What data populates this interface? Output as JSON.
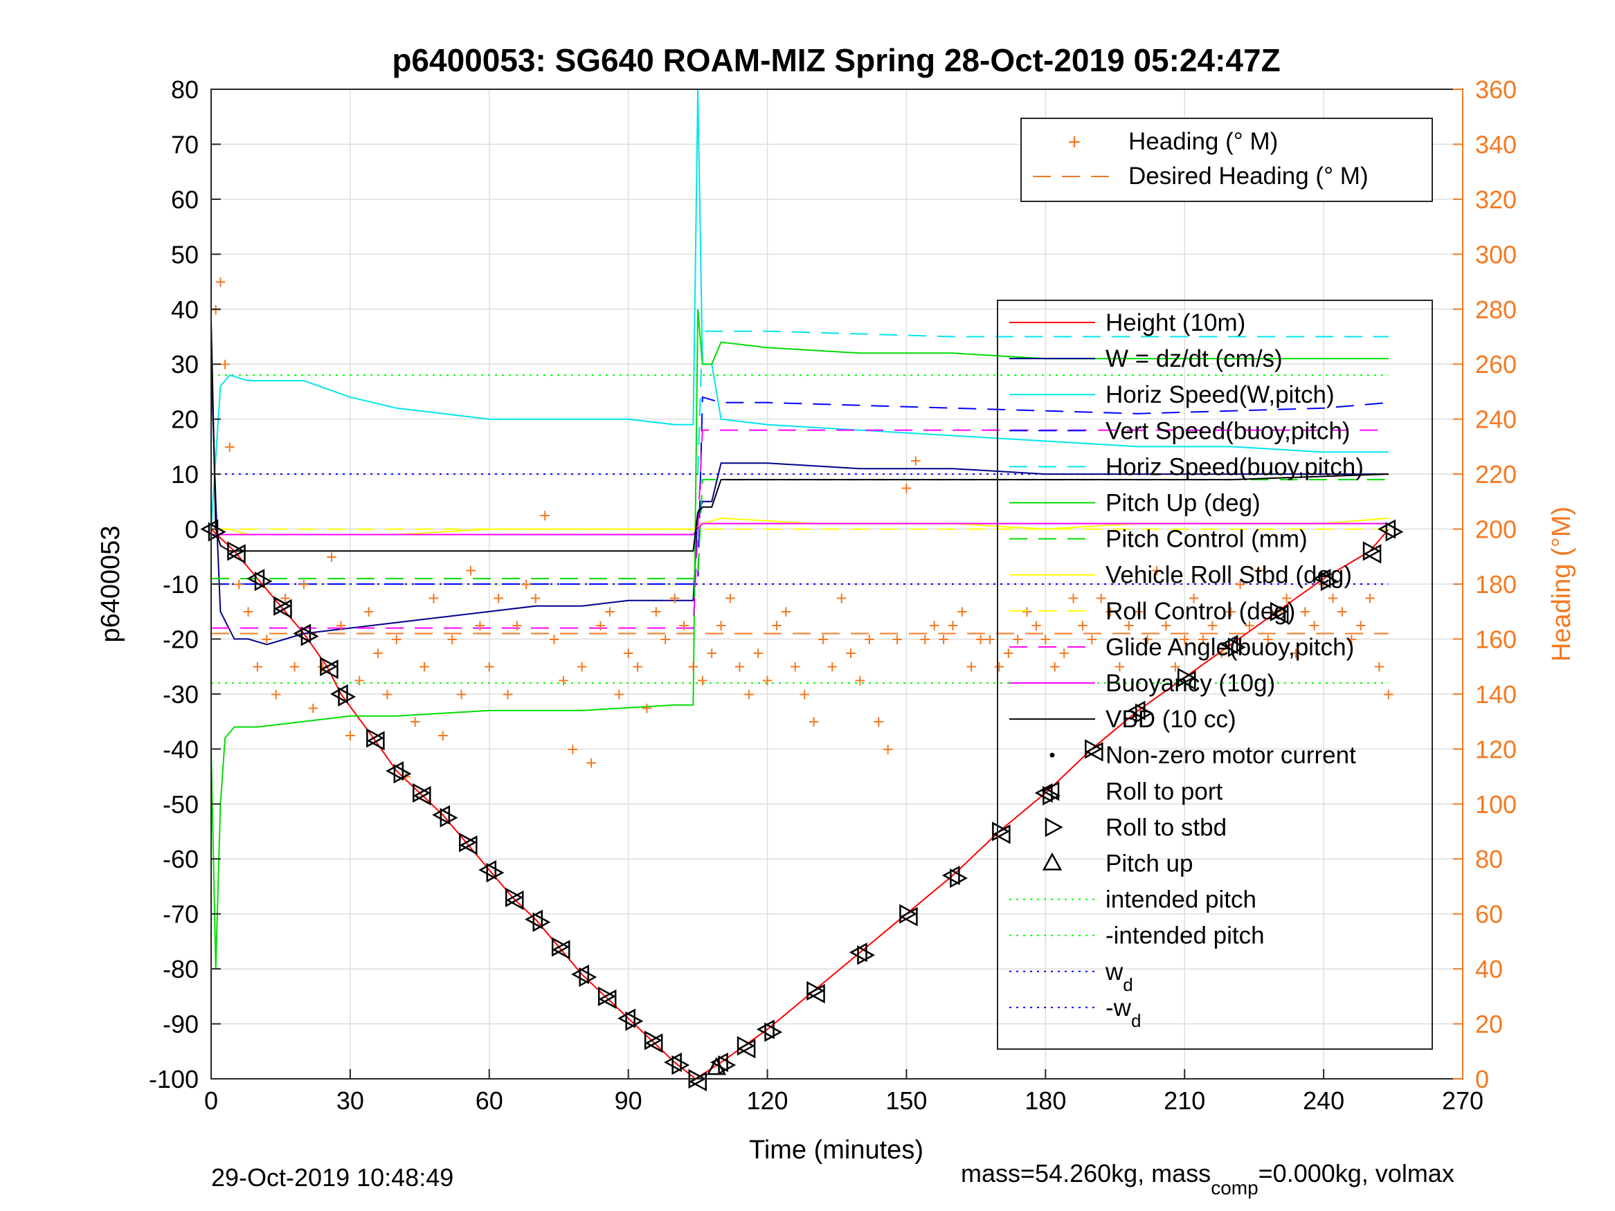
{
  "chart_data": {
    "type": "line",
    "title": "p6400053: SG640 ROAM-MIZ Spring 28-Oct-2019 05:24:47Z",
    "xlabel": "Time (minutes)",
    "ylabel_left": "p6400053",
    "ylabel_right": "Heading (°M)",
    "xlim": [
      0,
      270
    ],
    "ylim_left": [
      -100,
      80
    ],
    "ylim_right": [
      0,
      360
    ],
    "x_ticks": [
      "0",
      "30",
      "60",
      "90",
      "120",
      "150",
      "180",
      "210",
      "240",
      "270"
    ],
    "y_ticks_left": [
      "80",
      "70",
      "60",
      "50",
      "40",
      "30",
      "20",
      "10",
      "0",
      "-10",
      "-20",
      "-30",
      "-40",
      "-50",
      "-60",
      "-70",
      "-80",
      "-90",
      "-100"
    ],
    "y_ticks_right": [
      "360",
      "340",
      "320",
      "300",
      "280",
      "260",
      "240",
      "220",
      "200",
      "180",
      "160",
      "140",
      "120",
      "100",
      "80",
      "60",
      "40",
      "20",
      "0"
    ],
    "grid": true,
    "colors": {
      "heading": "#f47920",
      "axis_right": "#f47920",
      "height": "#ff0000",
      "w": "#00008b",
      "horiz_w": "#00e5ee",
      "vert_buoy": "#0000ff",
      "horiz_buoy": "#00e5ee",
      "pitch_up": "#00dd00",
      "pitch_control": "#00dd00",
      "roll": "#ffff00",
      "roll_control": "#ffff00",
      "glide": "#ff00ff",
      "buoyancy": "#ff00ff",
      "vbd": "#000000",
      "intended": "#00ff00",
      "wd": "#0000ff"
    },
    "reference_lines": {
      "intended_pitch": 28,
      "neg_intended_pitch": -28,
      "w_d": 10,
      "neg_w_d": -10
    },
    "series": [
      {
        "name": "Height (10m)",
        "x": [
          0,
          5,
          10,
          15,
          20,
          25,
          28,
          35,
          40,
          45,
          50,
          55,
          60,
          65,
          70,
          75,
          80,
          85,
          90,
          95,
          100,
          104.5,
          110,
          115,
          120,
          130,
          140,
          150,
          160,
          170,
          180,
          190,
          200,
          210,
          220,
          230,
          240,
          250,
          254
        ],
        "y": [
          0,
          -4,
          -9,
          -14,
          -19,
          -25,
          -30,
          -38,
          -44,
          -48,
          -52,
          -57,
          -62,
          -67,
          -71,
          -76,
          -81,
          -85,
          -89,
          -93,
          -97,
          -100,
          -97,
          -94,
          -91,
          -84,
          -77,
          -70,
          -63,
          -55,
          -48,
          -40,
          -33,
          -27,
          -21,
          -15,
          -9,
          -4,
          0
        ]
      },
      {
        "name": "W = dz/dt (cm/s)",
        "x": [
          0,
          1,
          2,
          5,
          8,
          12,
          20,
          30,
          40,
          50,
          60,
          70,
          80,
          90,
          100,
          104,
          105,
          106,
          108,
          110,
          120,
          140,
          160,
          180,
          200,
          220,
          240,
          250,
          254
        ],
        "y": [
          30,
          5,
          -15,
          -20,
          -20,
          -21,
          -19,
          -18,
          -17,
          -16,
          -15,
          -14,
          -14,
          -13,
          -13,
          -13,
          3,
          5,
          5,
          12,
          12,
          11,
          11,
          10,
          10,
          10,
          10,
          10,
          10
        ]
      },
      {
        "name": "Horiz Speed(W,pitch)",
        "x": [
          0,
          2,
          4,
          8,
          12,
          16,
          20,
          30,
          40,
          50,
          60,
          70,
          80,
          90,
          100,
          104,
          105,
          106,
          108,
          110,
          120,
          140,
          160,
          180,
          200,
          220,
          240,
          250,
          254
        ],
        "y": [
          0,
          26,
          28,
          27,
          27,
          27,
          27,
          24,
          22,
          21,
          20,
          20,
          20,
          20,
          19,
          19,
          80,
          30,
          30,
          20,
          19,
          18,
          17,
          16,
          15,
          15,
          14,
          14,
          14
        ]
      },
      {
        "name": "Vert Speed(buoy,pitch)",
        "x": [
          0,
          2,
          105,
          106,
          110,
          120,
          160,
          200,
          240,
          254
        ],
        "y": [
          -10,
          -10,
          -10,
          24,
          23,
          23,
          22,
          21,
          22,
          23
        ]
      },
      {
        "name": "Horiz Speed(buoy,pitch)",
        "x": [
          105,
          106,
          110,
          120,
          160,
          200,
          240,
          254
        ],
        "y": [
          10,
          36,
          36,
          36,
          35,
          35,
          35,
          35
        ]
      },
      {
        "name": "Pitch Up (deg)",
        "x": [
          0,
          1,
          2,
          3,
          5,
          10,
          20,
          30,
          40,
          60,
          80,
          100,
          104,
          105,
          106,
          108,
          110,
          120,
          140,
          160,
          180,
          200,
          220,
          240,
          250,
          254
        ],
        "y": [
          -40,
          -80,
          -50,
          -38,
          -36,
          -36,
          -35,
          -34,
          -34,
          -33,
          -33,
          -32,
          -32,
          40,
          30,
          30,
          34,
          33,
          32,
          32,
          31,
          31,
          31,
          31,
          31,
          31
        ]
      },
      {
        "name": "Pitch Control (mm)",
        "x": [
          0,
          2,
          105,
          106,
          254
        ],
        "y": [
          -9,
          -9,
          -9,
          9,
          9
        ]
      },
      {
        "name": "Vehicle Roll Stbd (deg)",
        "x": [
          0,
          4,
          8,
          20,
          40,
          60,
          80,
          100,
          104,
          106,
          110,
          130,
          160,
          180,
          200,
          220,
          240,
          254
        ],
        "y": [
          0,
          0,
          -1,
          -1,
          -1,
          0,
          0,
          0,
          0,
          1,
          2,
          1,
          1,
          0,
          1,
          1,
          1,
          2
        ]
      },
      {
        "name": "Roll Control (deg)",
        "x": [
          0,
          254
        ],
        "y": [
          0,
          0
        ]
      },
      {
        "name": "Glide Angle(buoy,pitch)",
        "x": [
          0,
          104,
          106,
          254
        ],
        "y": [
          -18,
          -18,
          18,
          18
        ]
      },
      {
        "name": "Buoyancy (10g)",
        "x": [
          0,
          104,
          106,
          254
        ],
        "y": [
          -1,
          -1,
          1,
          1
        ]
      },
      {
        "name": "VBD (10 cc)",
        "x": [
          0,
          1,
          2,
          4,
          10,
          50,
          104,
          105,
          106,
          108,
          110,
          130,
          180,
          220,
          254
        ],
        "y": [
          38,
          0,
          -3,
          -4,
          -4,
          -4,
          -4,
          3,
          4,
          4,
          9,
          9,
          9,
          9,
          10
        ]
      }
    ],
    "heading_points": {
      "name": "Heading (° M)",
      "x": [
        1,
        2,
        3,
        4,
        6,
        8,
        10,
        12,
        14,
        16,
        18,
        20,
        22,
        24,
        26,
        28,
        30,
        32,
        34,
        36,
        38,
        40,
        42,
        44,
        46,
        48,
        50,
        52,
        54,
        56,
        58,
        60,
        62,
        64,
        66,
        68,
        70,
        72,
        74,
        76,
        78,
        80,
        82,
        84,
        86,
        88,
        90,
        92,
        94,
        96,
        98,
        100,
        102,
        104,
        106,
        108,
        110,
        112,
        114,
        116,
        118,
        120,
        122,
        124,
        126,
        128,
        130,
        132,
        134,
        136,
        138,
        140,
        142,
        144,
        146,
        148,
        150,
        152,
        154,
        156,
        158,
        160,
        162,
        164,
        166,
        168,
        170,
        172,
        174,
        176,
        178,
        180,
        182,
        184,
        186,
        188,
        190,
        192,
        194,
        196,
        198,
        200,
        202,
        204,
        206,
        208,
        210,
        212,
        214,
        216,
        218,
        220,
        222,
        224,
        226,
        228,
        230,
        232,
        234,
        236,
        238,
        240,
        242,
        244,
        246,
        248,
        250,
        252,
        254
      ],
      "y": [
        280,
        290,
        260,
        230,
        180,
        170,
        150,
        160,
        140,
        175,
        150,
        180,
        135,
        150,
        190,
        165,
        125,
        145,
        170,
        155,
        140,
        160,
        110,
        130,
        150,
        175,
        125,
        160,
        140,
        185,
        165,
        150,
        175,
        140,
        165,
        180,
        175,
        205,
        160,
        145,
        120,
        150,
        115,
        165,
        170,
        140,
        155,
        150,
        135,
        170,
        160,
        175,
        165,
        150,
        145,
        155,
        165,
        175,
        150,
        140,
        155,
        145,
        165,
        170,
        150,
        140,
        130,
        160,
        150,
        175,
        155,
        145,
        160,
        130,
        120,
        160,
        215,
        225,
        160,
        165,
        160,
        165,
        170,
        150,
        160,
        160,
        150,
        155,
        160,
        170,
        165,
        160,
        150,
        155,
        175,
        165,
        160,
        175,
        170,
        150,
        165,
        170,
        160,
        185,
        165,
        150,
        160,
        175,
        160,
        165,
        155,
        170,
        180,
        165,
        185,
        160,
        170,
        175,
        155,
        170,
        165,
        180,
        175,
        170,
        160,
        165,
        175,
        150,
        140
      ]
    },
    "desired_heading": {
      "name": "Desired Heading (° M)",
      "value": 162
    },
    "legend_top": [
      "Heading (° M)",
      "Desired Heading (° M)"
    ],
    "legend_main": [
      "Height (10m)",
      "W = dz/dt (cm/s)",
      "Horiz Speed(W,pitch)",
      "Vert Speed(buoy,pitch)",
      "Horiz Speed(buoy,pitch)",
      "Pitch Up (deg)",
      "Pitch Control (mm)",
      "Vehicle Roll Stbd (deg)",
      "Roll Control (deg)",
      "Glide Angle(buoy,pitch)",
      "Buoyancy (10g)",
      "VBD (10 cc)",
      "Non-zero motor current",
      "Roll to port",
      "Roll to stbd",
      "Pitch up",
      "intended pitch",
      "-intended pitch",
      "w",
      "-w"
    ],
    "legend_placement": "top-right"
  },
  "footer": {
    "datetime": "29-Oct-2019 10:48:49",
    "mass_text": "mass=54.260kg, mass",
    "mass_sub": "comp",
    "mass_tail": "=0.000kg, volmax",
    "wd_sub": "d"
  }
}
